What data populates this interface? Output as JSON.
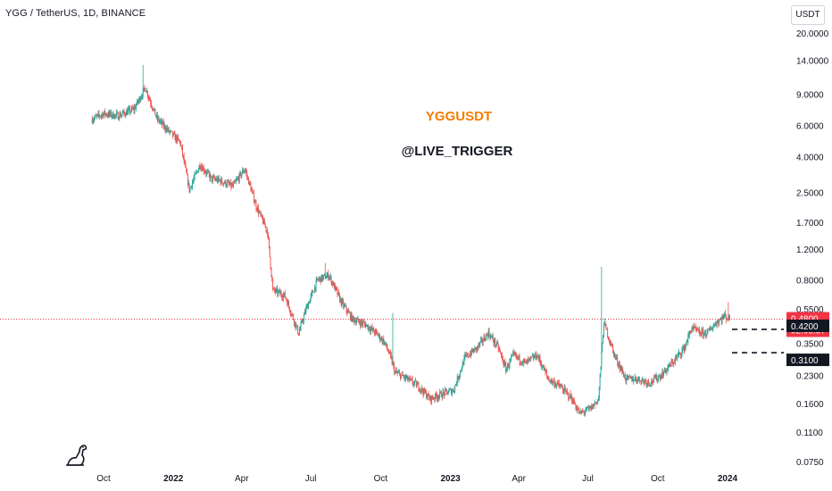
{
  "header": {
    "symbol_line": "YGG / TetherUS, 1D, BINANCE"
  },
  "currency_button": {
    "label": "USDT"
  },
  "annotation": {
    "title": "YGGUSDT",
    "subtitle": "@LIVE_TRIGGER"
  },
  "colors": {
    "up": "#26a69a",
    "down": "#ef5350",
    "title": "#f57c00",
    "price_line": "#f23645",
    "tag_dark": "#131722"
  },
  "icons": {
    "logo": "tradingview-dino-icon"
  },
  "chart_data": {
    "type": "candlestick",
    "y_scale": "log",
    "y_ticks": [
      "20.0000",
      "14.0000",
      "9.0000",
      "6.0000",
      "4.0000",
      "2.5000",
      "1.7000",
      "1.2000",
      "0.8000",
      "0.5500",
      "0.3500",
      "0.2300",
      "0.1600",
      "0.1100",
      "0.0750"
    ],
    "x_ticks": [
      {
        "label": "Oct",
        "bold": false
      },
      {
        "label": "2022",
        "bold": true
      },
      {
        "label": "Apr",
        "bold": false
      },
      {
        "label": "Jul",
        "bold": false
      },
      {
        "label": "Oct",
        "bold": false
      },
      {
        "label": "2023",
        "bold": true
      },
      {
        "label": "Apr",
        "bold": false
      },
      {
        "label": "Jul",
        "bold": false
      },
      {
        "label": "Oct",
        "bold": false
      },
      {
        "label": "2024",
        "bold": true
      }
    ],
    "price_anchors": [
      [
        "2021-09-16",
        6.5
      ],
      [
        "2021-10-01",
        7.0
      ],
      [
        "2021-10-20",
        6.8
      ],
      [
        "2021-11-10",
        7.4
      ],
      [
        "2021-11-25",
        9.8
      ],
      [
        "2021-12-10",
        6.6
      ],
      [
        "2021-12-25",
        5.6
      ],
      [
        "2022-01-10",
        4.8
      ],
      [
        "2022-01-22",
        2.6
      ],
      [
        "2022-02-05",
        3.6
      ],
      [
        "2022-02-20",
        3.0
      ],
      [
        "2022-03-05",
        2.9
      ],
      [
        "2022-03-20",
        2.7
      ],
      [
        "2022-04-05",
        3.4
      ],
      [
        "2022-04-20",
        2.1
      ],
      [
        "2022-05-05",
        1.5
      ],
      [
        "2022-05-12",
        0.7
      ],
      [
        "2022-05-28",
        0.65
      ],
      [
        "2022-06-15",
        0.4
      ],
      [
        "2022-06-25",
        0.55
      ],
      [
        "2022-07-10",
        0.8
      ],
      [
        "2022-07-25",
        0.85
      ],
      [
        "2022-08-10",
        0.6
      ],
      [
        "2022-08-25",
        0.48
      ],
      [
        "2022-09-10",
        0.45
      ],
      [
        "2022-09-25",
        0.4
      ],
      [
        "2022-10-05",
        0.36
      ],
      [
        "2022-10-12",
        0.31
      ],
      [
        "2022-10-20",
        0.24
      ],
      [
        "2022-11-05",
        0.22
      ],
      [
        "2022-11-20",
        0.2
      ],
      [
        "2022-12-05",
        0.17
      ],
      [
        "2022-12-20",
        0.18
      ],
      [
        "2023-01-05",
        0.19
      ],
      [
        "2023-01-20",
        0.29
      ],
      [
        "2023-02-05",
        0.33
      ],
      [
        "2023-02-20",
        0.4
      ],
      [
        "2023-03-05",
        0.33
      ],
      [
        "2023-03-15",
        0.25
      ],
      [
        "2023-03-25",
        0.3
      ],
      [
        "2023-04-10",
        0.27
      ],
      [
        "2023-04-25",
        0.3
      ],
      [
        "2023-05-10",
        0.22
      ],
      [
        "2023-05-25",
        0.2
      ],
      [
        "2023-06-10",
        0.17
      ],
      [
        "2023-06-20",
        0.14
      ],
      [
        "2023-07-05",
        0.15
      ],
      [
        "2023-07-15",
        0.17
      ],
      [
        "2023-07-22",
        0.46
      ],
      [
        "2023-08-05",
        0.3
      ],
      [
        "2023-08-20",
        0.22
      ],
      [
        "2023-09-05",
        0.22
      ],
      [
        "2023-09-20",
        0.21
      ],
      [
        "2023-10-05",
        0.23
      ],
      [
        "2023-10-20",
        0.27
      ],
      [
        "2023-11-05",
        0.33
      ],
      [
        "2023-11-15",
        0.43
      ],
      [
        "2023-11-25",
        0.4
      ],
      [
        "2023-12-05",
        0.4
      ],
      [
        "2023-12-15",
        0.45
      ],
      [
        "2023-12-28",
        0.5
      ],
      [
        "2024-01-04",
        0.48
      ]
    ],
    "spikes": [
      [
        "2021-11-22",
        13.2
      ],
      [
        "2022-07-20",
        1.0
      ],
      [
        "2022-10-17",
        0.52
      ],
      [
        "2023-07-19",
        0.95
      ],
      [
        "2024-01-02",
        0.6
      ]
    ],
    "current_price": {
      "value": 0.48,
      "label": "0.4800",
      "countdown": "02:08:57"
    },
    "levels": [
      {
        "value": 0.42,
        "label": "0.4200"
      },
      {
        "value": 0.31,
        "label": "0.3100"
      }
    ]
  }
}
